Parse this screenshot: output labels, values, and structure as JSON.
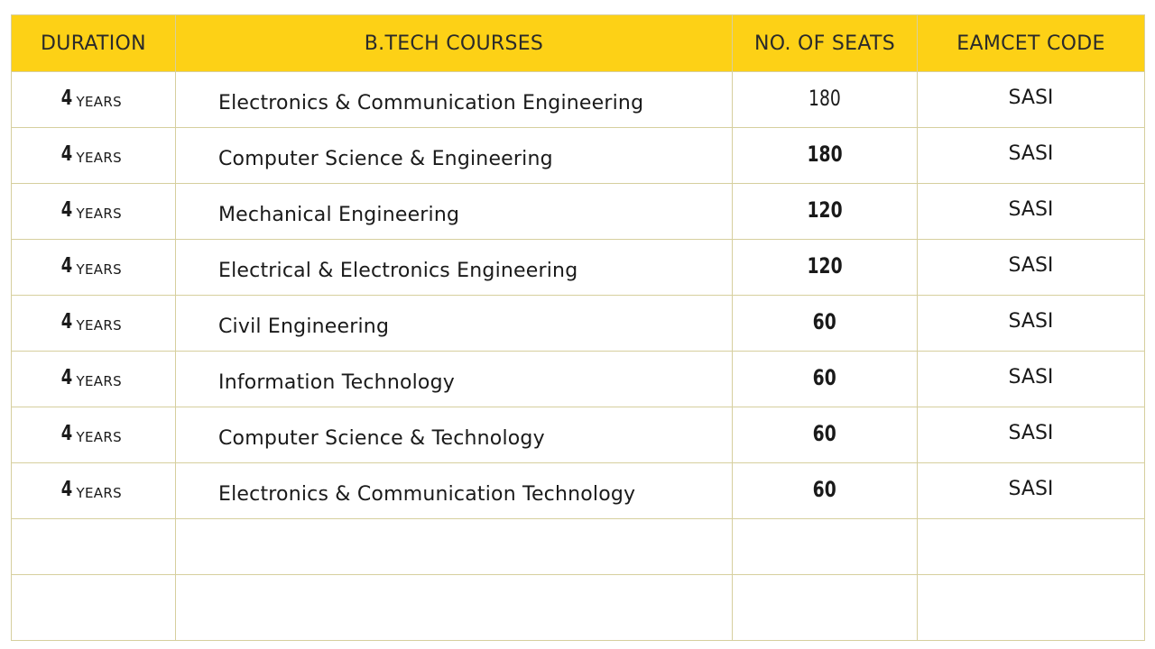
{
  "table": {
    "headers": {
      "duration": "DURATION",
      "courses": "B.TECH COURSES",
      "seats": "NO. OF SEATS",
      "code": "EAMCET CODE"
    },
    "rows": [
      {
        "duration_num": "4",
        "duration_unit": "YEARS",
        "course": "Electronics & Communication Engineering",
        "seats": "180",
        "seats_bold": false,
        "code": "SASI"
      },
      {
        "duration_num": "4",
        "duration_unit": "YEARS",
        "course": "Computer Science & Engineering",
        "seats": "180",
        "seats_bold": true,
        "code": "SASI"
      },
      {
        "duration_num": "4",
        "duration_unit": "YEARS",
        "course": "Mechanical Engineering",
        "seats": "120",
        "seats_bold": true,
        "code": "SASI"
      },
      {
        "duration_num": "4",
        "duration_unit": "YEARS",
        "course": "Electrical & Electronics Engineering",
        "seats": "120",
        "seats_bold": true,
        "code": "SASI"
      },
      {
        "duration_num": "4",
        "duration_unit": "YEARS",
        "course": "Civil Engineering",
        "seats": "60",
        "seats_bold": true,
        "code": "SASI"
      },
      {
        "duration_num": "4",
        "duration_unit": "YEARS",
        "course": "Information Technology",
        "seats": "60",
        "seats_bold": true,
        "code": "SASI"
      },
      {
        "duration_num": "4",
        "duration_unit": "YEARS",
        "course": "Computer Science & Technology",
        "seats": "60",
        "seats_bold": true,
        "code": "SASI"
      },
      {
        "duration_num": "4",
        "duration_unit": "YEARS",
        "course": "Electronics & Communication Technology",
        "seats": "60",
        "seats_bold": true,
        "code": "SASI"
      }
    ],
    "empty_rows": 2
  },
  "colors": {
    "header_bg": "#fdd116",
    "border": "#d6cf9e",
    "text": "#1a1a1a"
  }
}
